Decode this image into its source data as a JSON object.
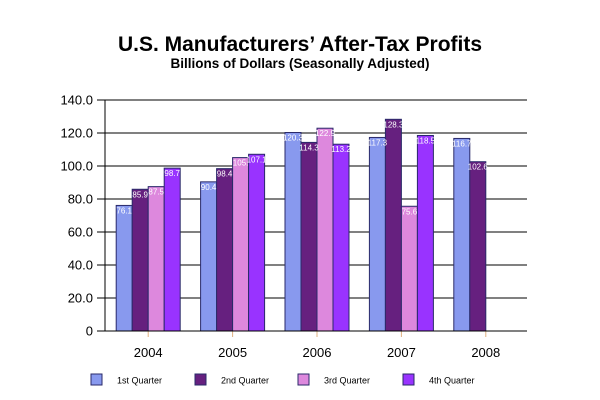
{
  "chart_data": {
    "type": "bar",
    "title": "U.S. Manufacturers’ After-Tax Profits",
    "subtitle": "Billions of Dollars (Seasonally Adjusted)",
    "xlabel": "",
    "ylabel": "",
    "ylim": [
      0,
      140
    ],
    "yticks": [
      0,
      20,
      40,
      60,
      80,
      100,
      120,
      140
    ],
    "ytick_labels": [
      "0",
      "20.0",
      "40.0",
      "60.0",
      "80.0",
      "100.0",
      "120.0",
      "140.0"
    ],
    "grid": true,
    "legend_position": "bottom",
    "categories": [
      "2004",
      "2005",
      "2006",
      "2007",
      "2008"
    ],
    "series": [
      {
        "name": "1st Quarter",
        "color": "#8899ee",
        "values": [
          76.1,
          90.4,
          120.3,
          117.3,
          116.7
        ],
        "labels": [
          "76.1",
          "90.4",
          "120.3",
          "117.3",
          "116.7"
        ]
      },
      {
        "name": "2nd Quarter",
        "color": "#66207f",
        "values": [
          85.9,
          98.4,
          114.3,
          128.3,
          102.6
        ],
        "labels": [
          "85.9",
          "98.4",
          "114.3",
          "128.3",
          "102.6"
        ]
      },
      {
        "name": "3rd Quarter",
        "color": "#dd88dd",
        "values": [
          87.5,
          105.1,
          122.9,
          75.6,
          null
        ],
        "labels": [
          "87.5",
          "105.",
          "122.9",
          "75.6",
          ""
        ]
      },
      {
        "name": "4th Quarter",
        "color": "#9933ff",
        "values": [
          98.7,
          107.1,
          113.2,
          118.5,
          null
        ],
        "labels": [
          "98.7",
          "107.1",
          "113.2",
          "118.5",
          ""
        ]
      }
    ]
  }
}
